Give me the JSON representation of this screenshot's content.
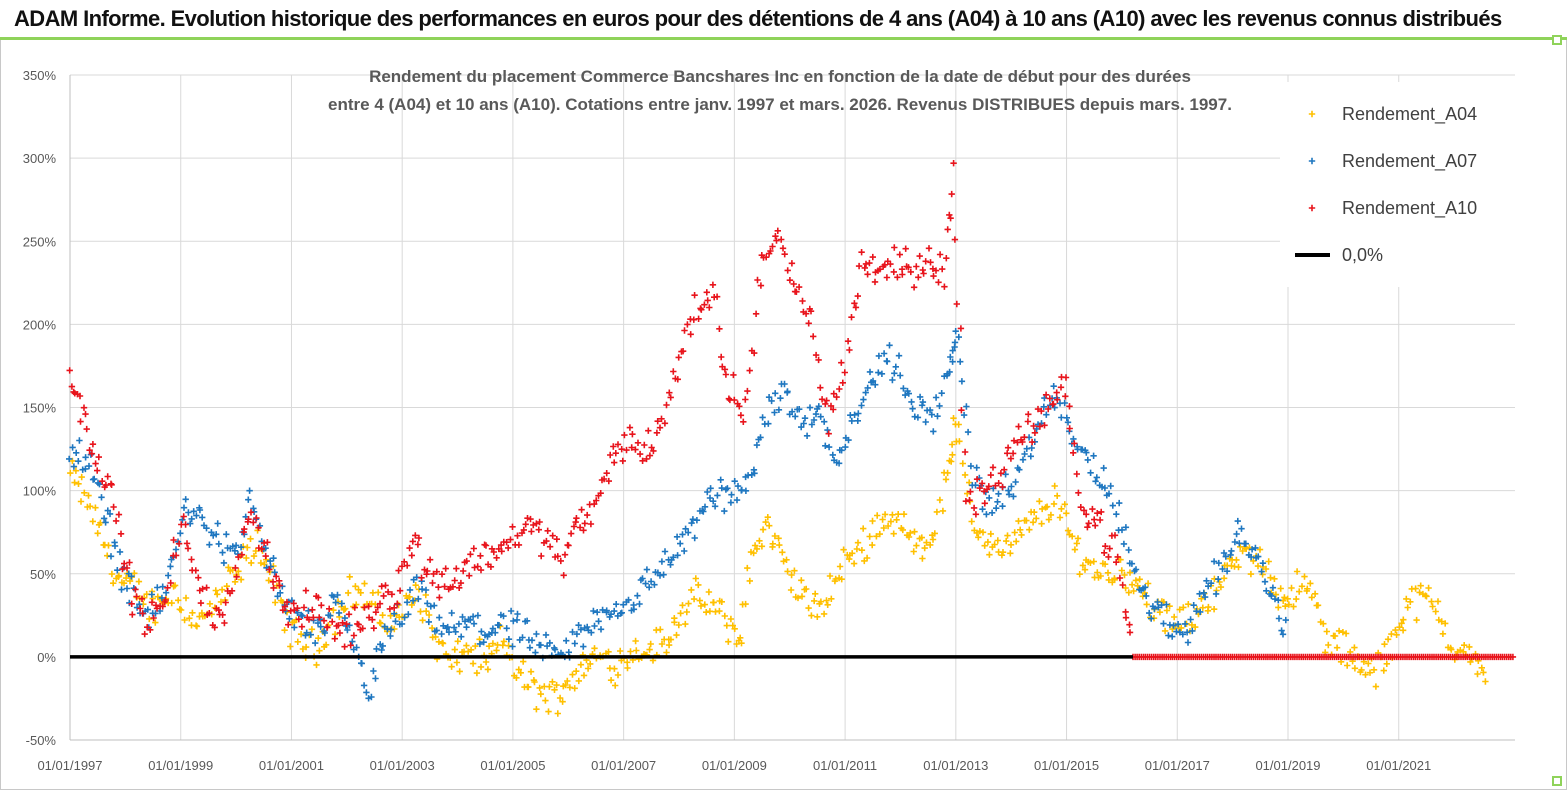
{
  "header": {
    "title": "ADAM Informe. Evolution historique des performances en euros pour des détentions de 4 ans (A04) à 10 ans (A10) avec les revenus connus distribués"
  },
  "colors": {
    "A04": "#ffc000",
    "A07": "#1f77c0",
    "A10": "#e8141c",
    "zero": "#000000",
    "grid": "#d9d9d9",
    "accent_green": "#8fd35a"
  },
  "chart_data": {
    "type": "scatter",
    "title_lines": [
      "Rendement du placement Commerce Bancshares Inc en fonction de la date de début pour des durées",
      "entre 4 (A04) et 10 ans (A10). Cotations entre janv. 1997 et mars. 2026. Revenus DISTRIBUES depuis mars. 1997."
    ],
    "xlabel": "",
    "ylabel": "",
    "x_range": [
      1997.0,
      2023.1
    ],
    "ylim": [
      -50,
      350
    ],
    "y_ticks": [
      -50,
      0,
      50,
      100,
      150,
      200,
      250,
      300,
      350
    ],
    "y_tick_labels": [
      "-50%",
      "0%",
      "50%",
      "100%",
      "150%",
      "200%",
      "250%",
      "300%",
      "350%"
    ],
    "x_ticks": [
      1997,
      1999,
      2001,
      2003,
      2005,
      2007,
      2009,
      2011,
      2013,
      2015,
      2017,
      2019,
      2021
    ],
    "x_tick_labels": [
      "01/01/1997",
      "01/01/1999",
      "01/01/2001",
      "01/01/2003",
      "01/01/2005",
      "01/01/2007",
      "01/01/2009",
      "01/01/2011",
      "01/01/2013",
      "01/01/2015",
      "01/01/2017",
      "01/01/2019",
      "01/01/2021"
    ],
    "grid": true,
    "legend_position": "top-right",
    "legend": [
      "Rendement_A04",
      "Rendement_A07",
      "Rendement_A10",
      "0,0%"
    ],
    "series": [
      {
        "name": "Rendement_A04",
        "x": [
          1997.0,
          1997.3,
          1997.6,
          1997.9,
          1998.2,
          1998.5,
          1998.9,
          1999.3,
          1999.6,
          1999.9,
          2000.1,
          2000.4,
          2000.7,
          2001.0,
          2001.4,
          2001.8,
          2002.1,
          2002.4,
          2002.7,
          2003.0,
          2003.3,
          2003.6,
          2003.9,
          2004.2,
          2004.5,
          2004.8,
          2005.1,
          2005.4,
          2005.7,
          2006.0,
          2006.3,
          2006.6,
          2006.9,
          2007.2,
          2007.5,
          2007.8,
          2008.0,
          2008.3,
          2008.6,
          2008.9,
          2009.1,
          2009.3,
          2009.6,
          2009.9,
          2010.2,
          2010.5,
          2010.8,
          2011.1,
          2011.4,
          2011.7,
          2012.0,
          2012.3,
          2012.6,
          2012.9,
          2013.0,
          2013.3,
          2013.6,
          2013.9,
          2014.2,
          2014.5,
          2014.8,
          2015.1,
          2015.4,
          2015.7,
          2016.0,
          2016.3,
          2016.6,
          2016.9,
          2017.2,
          2017.5,
          2017.8,
          2018.0,
          2018.3,
          2018.6,
          2018.9,
          2019.1,
          2019.4,
          2019.7,
          2020.0,
          2020.3,
          2020.6,
          2020.9,
          2021.1,
          2021.4,
          2021.7,
          2022.0,
          2022.3,
          2022.6
        ],
        "values": [
          110,
          95,
          70,
          45,
          40,
          30,
          40,
          20,
          30,
          45,
          55,
          70,
          40,
          15,
          5,
          25,
          40,
          35,
          20,
          25,
          40,
          10,
          -5,
          5,
          -5,
          10,
          -10,
          -20,
          -25,
          -15,
          -5,
          0,
          -5,
          5,
          5,
          10,
          25,
          35,
          30,
          20,
          10,
          60,
          80,
          55,
          40,
          25,
          45,
          60,
          70,
          85,
          80,
          65,
          75,
          120,
          140,
          80,
          70,
          65,
          75,
          85,
          95,
          70,
          55,
          50,
          55,
          40,
          30,
          20,
          20,
          35,
          45,
          55,
          60,
          55,
          35,
          40,
          40,
          10,
          5,
          -5,
          -10,
          10,
          30,
          35,
          30,
          5,
          0,
          -20
        ]
      },
      {
        "name": "Rendement_A07",
        "x": [
          1997.0,
          1997.3,
          1997.6,
          1997.9,
          1998.2,
          1998.5,
          1998.8,
          1999.1,
          1999.4,
          1999.7,
          2000.0,
          2000.3,
          2000.6,
          2000.9,
          2001.2,
          2001.5,
          2001.8,
          2002.1,
          2002.4,
          2002.7,
          2003.0,
          2003.3,
          2003.6,
          2003.9,
          2004.2,
          2004.5,
          2004.8,
          2005.1,
          2005.4,
          2005.7,
          2006.0,
          2006.3,
          2006.6,
          2006.9,
          2007.2,
          2007.5,
          2007.8,
          2008.1,
          2008.4,
          2008.7,
          2009.0,
          2009.3,
          2009.6,
          2009.9,
          2010.2,
          2010.5,
          2010.8,
          2011.1,
          2011.4,
          2011.7,
          2012.0,
          2012.3,
          2012.6,
          2012.9,
          2013.0,
          2013.3,
          2013.6,
          2013.9,
          2014.2,
          2014.5,
          2014.8,
          2015.1,
          2015.4,
          2015.7,
          2016.0,
          2016.3,
          2016.6,
          2016.9,
          2017.2,
          2017.5,
          2017.8,
          2018.1,
          2018.4,
          2018.7,
          2019.0
        ],
        "values": [
          125,
          120,
          90,
          55,
          35,
          25,
          50,
          90,
          80,
          70,
          60,
          95,
          55,
          30,
          20,
          15,
          30,
          10,
          -20,
          10,
          25,
          40,
          20,
          15,
          20,
          15,
          20,
          15,
          5,
          0,
          5,
          15,
          25,
          30,
          35,
          45,
          60,
          70,
          85,
          100,
          95,
          110,
          150,
          160,
          140,
          150,
          120,
          140,
          160,
          180,
          170,
          150,
          145,
          170,
          200,
          110,
          90,
          100,
          110,
          140,
          160,
          130,
          120,
          100,
          80,
          40,
          30,
          15,
          20,
          40,
          55,
          75,
          60,
          40,
          15
        ]
      },
      {
        "name": "Rendement_A10",
        "x": [
          1997.0,
          1997.2,
          1997.5,
          1997.8,
          1998.1,
          1998.4,
          1998.7,
          1999.0,
          1999.3,
          1999.6,
          1999.9,
          2000.2,
          2000.5,
          2000.8,
          2001.1,
          2001.4,
          2001.7,
          2002.0,
          2002.3,
          2002.6,
          2002.9,
          2003.2,
          2003.5,
          2003.8,
          2004.1,
          2004.4,
          2004.7,
          2005.0,
          2005.3,
          2005.6,
          2005.9,
          2006.2,
          2006.5,
          2006.8,
          2007.1,
          2007.4,
          2007.7,
          2008.0,
          2008.3,
          2008.6,
          2008.9,
          2009.2,
          2009.5,
          2009.8,
          2010.1,
          2010.4,
          2010.7,
          2011.0,
          2011.3,
          2011.6,
          2011.9,
          2012.2,
          2012.5,
          2012.8,
          2012.95,
          2013.2,
          2013.5,
          2013.8,
          2014.1,
          2014.4,
          2014.7,
          2015.0,
          2015.3,
          2015.6,
          2015.9,
          2016.2,
          2016.5,
          2016.8,
          2017.1,
          2017.4,
          2017.7,
          2018.0,
          2018.3,
          2018.6,
          2018.9,
          2019.2,
          2019.5,
          2019.8,
          2020.1,
          2020.4,
          2020.7,
          2021.0,
          2021.3,
          2021.6,
          2021.9,
          2022.2,
          2022.5,
          2022.8,
          2023.1
        ],
        "values": [
          170,
          150,
          120,
          90,
          40,
          20,
          30,
          80,
          50,
          20,
          30,
          90,
          70,
          35,
          25,
          30,
          20,
          15,
          20,
          35,
          40,
          70,
          50,
          45,
          50,
          60,
          65,
          70,
          80,
          70,
          60,
          80,
          90,
          120,
          130,
          125,
          140,
          180,
          210,
          220,
          160,
          150,
          240,
          250,
          220,
          200,
          140,
          180,
          240,
          230,
          240,
          230,
          240,
          230,
          290,
          90,
          100,
          110,
          130,
          140,
          150,
          160,
          90,
          80,
          60,
          0,
          0,
          0,
          0,
          0,
          0,
          0,
          0,
          0,
          0,
          0,
          0,
          0,
          0,
          0,
          0,
          0,
          0,
          0,
          0,
          0,
          0,
          0,
          0
        ]
      },
      {
        "name": "0,0%",
        "x": [
          1997.0,
          2016.2
        ],
        "values": [
          0,
          0
        ]
      }
    ]
  }
}
